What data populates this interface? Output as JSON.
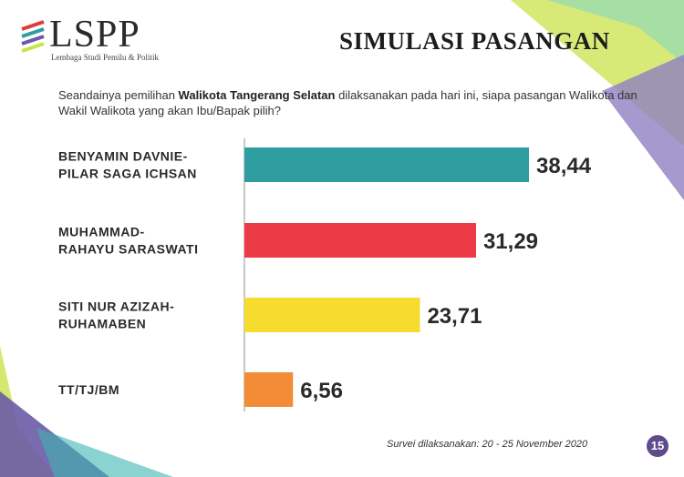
{
  "header": {
    "logo_text": "LSPP",
    "logo_subtitle": "Lembaga Studi Pemilu & Politik",
    "title": "SIMULASI PASANGAN"
  },
  "question": {
    "prefix": "Seandainya pemilihan ",
    "bold": "Walikota Tangerang Selatan",
    "suffix": " dilaksanakan pada hari ini, siapa pasangan Walikota dan Wakil Walikota yang akan Ibu/Bapak pilih?"
  },
  "colors": {
    "teal": "#2e9ea0",
    "red": "#ec3a46",
    "yellow": "#f6dc2e",
    "orange": "#f28c37",
    "purple": "#5e4b8b",
    "lime": "#c9e34b"
  },
  "chart_data": {
    "type": "bar",
    "orientation": "horizontal",
    "categories": [
      [
        "BENYAMIN DAVNIE-",
        "PILAR SAGA ICHSAN"
      ],
      [
        "MUHAMMAD-",
        "RAHAYU SARASWATI"
      ],
      [
        "SITI NUR AZIZAH-",
        "RUHAMABEN"
      ],
      [
        "TT/TJ/BM"
      ]
    ],
    "values": [
      38.44,
      31.29,
      23.71,
      6.56
    ],
    "value_labels": [
      "38,44",
      "31,29",
      "23,71",
      "6,56"
    ],
    "bar_colors": [
      "#2e9ea0",
      "#ec3a46",
      "#f6dc2e",
      "#f28c37"
    ],
    "xlim": [
      0,
      38.44
    ],
    "grid": false,
    "legend": "none"
  },
  "footer": {
    "note": "Survei dilaksanakan: 20 - 25 November 2020",
    "page_number": "15"
  }
}
